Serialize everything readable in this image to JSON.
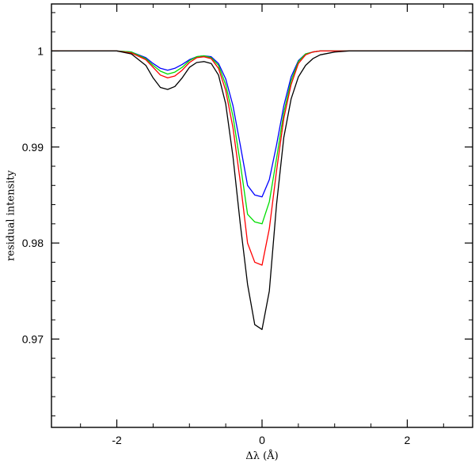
{
  "chart_data": {
    "type": "line",
    "title": "",
    "xlabel": "Δλ (Å)",
    "ylabel": "residual intensity",
    "xlim": [
      -2.9,
      2.9
    ],
    "ylim": [
      0.9608,
      1.0049
    ],
    "x_ticks": [
      {
        "value": -2,
        "label": "-2"
      },
      {
        "value": 0,
        "label": "0"
      },
      {
        "value": 2,
        "label": "2"
      }
    ],
    "y_ticks": [
      {
        "value": 0.97,
        "label": "0.97"
      },
      {
        "value": 0.98,
        "label": "0.98"
      },
      {
        "value": 0.99,
        "label": "0.99"
      },
      {
        "value": 1.0,
        "label": "1"
      }
    ],
    "x_minor_step": 0.5,
    "y_minor_step": 0.002,
    "grid": false,
    "x": [
      -2.9,
      -2.0,
      -1.8,
      -1.6,
      -1.5,
      -1.4,
      -1.3,
      -1.2,
      -1.1,
      -1.0,
      -0.9,
      -0.8,
      -0.7,
      -0.6,
      -0.5,
      -0.4,
      -0.3,
      -0.2,
      -0.1,
      0.0,
      0.1,
      0.2,
      0.3,
      0.4,
      0.5,
      0.6,
      0.7,
      0.8,
      1.0,
      1.2,
      1.5,
      2.0,
      2.9
    ],
    "series": [
      {
        "color": "#0000ff",
        "values": [
          1.0,
          1.0,
          0.9999,
          0.9993,
          0.9987,
          0.9982,
          0.998,
          0.9982,
          0.9986,
          0.9991,
          0.9994,
          0.9995,
          0.9994,
          0.9987,
          0.9971,
          0.9943,
          0.9902,
          0.986,
          0.985,
          0.9848,
          0.9866,
          0.9902,
          0.9943,
          0.9973,
          0.999,
          0.9997,
          0.9999,
          1.0,
          1.0,
          1.0,
          1.0,
          1.0,
          1.0
        ]
      },
      {
        "color": "#00dd00",
        "values": [
          1.0,
          1.0,
          0.9999,
          0.9992,
          0.9985,
          0.9979,
          0.9976,
          0.9978,
          0.9983,
          0.999,
          0.9994,
          0.9995,
          0.9993,
          0.9985,
          0.9965,
          0.9932,
          0.9883,
          0.983,
          0.9822,
          0.982,
          0.9843,
          0.9888,
          0.9936,
          0.9969,
          0.9989,
          0.9997,
          0.9999,
          1.0,
          1.0,
          1.0,
          1.0,
          1.0,
          1.0
        ]
      },
      {
        "color": "#ff0000",
        "values": [
          1.0,
          1.0,
          0.9998,
          0.9991,
          0.9983,
          0.9975,
          0.9972,
          0.9974,
          0.998,
          0.9988,
          0.9993,
          0.9994,
          0.9992,
          0.9982,
          0.9959,
          0.992,
          0.9864,
          0.98,
          0.978,
          0.9777,
          0.9815,
          0.9875,
          0.993,
          0.9965,
          0.9987,
          0.9996,
          0.9999,
          1.0,
          1.0,
          1.0,
          1.0,
          1.0,
          1.0
        ]
      },
      {
        "color": "#000000",
        "values": [
          1.0,
          1.0,
          0.9997,
          0.9985,
          0.9972,
          0.9962,
          0.996,
          0.9963,
          0.9972,
          0.9983,
          0.9988,
          0.9989,
          0.9987,
          0.9975,
          0.9945,
          0.989,
          0.982,
          0.9757,
          0.9715,
          0.971,
          0.975,
          0.984,
          0.991,
          0.995,
          0.9973,
          0.9985,
          0.9992,
          0.9996,
          0.9999,
          1.0,
          1.0,
          1.0,
          1.0
        ]
      }
    ]
  }
}
